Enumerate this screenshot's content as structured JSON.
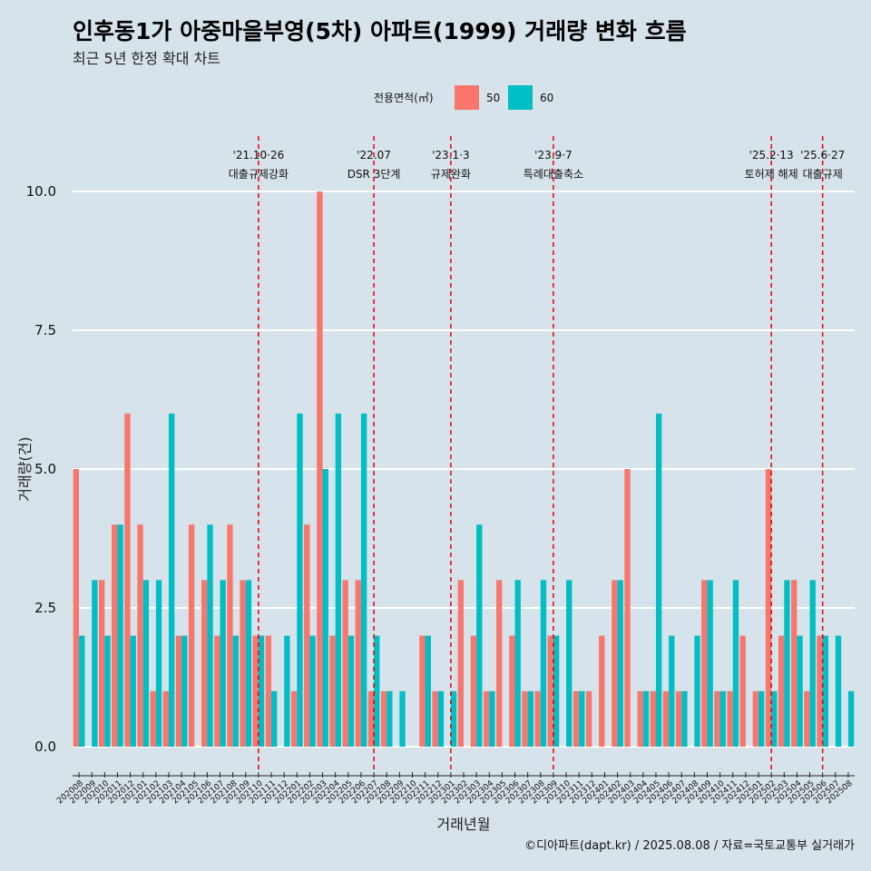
{
  "colors": {
    "background": "#d6e3ea",
    "s50": "#f8766d",
    "s60": "#00bfc4",
    "vline": "#e8000b",
    "grid": "#ffffff"
  },
  "chart_data": {
    "type": "bar",
    "title": "인후동1가 아중마을부영(5차) 아파트(1999) 거래량 변화 흐름",
    "subtitle": "최근 5년 한정 확대 차트",
    "xlabel": "거래년월",
    "ylabel": "거래량(건)",
    "ylim": [
      0,
      10
    ],
    "yticks": [
      "0.0",
      "2.5",
      "5.0",
      "7.5",
      "10.0"
    ],
    "legend": {
      "title": "전용면적(㎡)",
      "position": "top",
      "labels": [
        "50",
        "60"
      ]
    },
    "categories": [
      "202008",
      "202009",
      "202010",
      "202011",
      "202012",
      "202101",
      "202102",
      "202103",
      "202104",
      "202105",
      "202106",
      "202107",
      "202108",
      "202109",
      "202110",
      "202111",
      "202112",
      "202201",
      "202202",
      "202203",
      "202204",
      "202205",
      "202206",
      "202207",
      "202208",
      "202209",
      "202210",
      "202211",
      "202212",
      "202301",
      "202302",
      "202303",
      "202304",
      "202305",
      "202306",
      "202307",
      "202308",
      "202309",
      "202310",
      "202311",
      "202312",
      "202401",
      "202402",
      "202403",
      "202404",
      "202405",
      "202406",
      "202407",
      "202408",
      "202409",
      "202410",
      "202411",
      "202412",
      "202501",
      "202502",
      "202503",
      "202504",
      "202505",
      "202506",
      "202507",
      "202508"
    ],
    "series": [
      {
        "name": "50",
        "values": [
          5,
          0,
          3,
          4,
          6,
          4,
          1,
          1,
          2,
          4,
          3,
          2,
          4,
          3,
          2,
          2,
          0,
          1,
          4,
          10,
          2,
          3,
          3,
          1,
          1,
          0,
          0,
          2,
          1,
          0,
          3,
          2,
          1,
          3,
          2,
          1,
          1,
          2,
          0,
          1,
          1,
          2,
          3,
          5,
          1,
          1,
          1,
          1,
          0,
          3,
          1,
          1,
          2,
          1,
          5,
          2,
          3,
          1,
          2,
          0,
          0
        ]
      },
      {
        "name": "60",
        "values": [
          2,
          3,
          2,
          4,
          2,
          3,
          3,
          6,
          2,
          0,
          4,
          3,
          2,
          3,
          2,
          1,
          2,
          6,
          2,
          5,
          6,
          2,
          6,
          2,
          1,
          1,
          0,
          2,
          1,
          1,
          0,
          4,
          1,
          0,
          3,
          1,
          3,
          2,
          3,
          1,
          0,
          0,
          3,
          0,
          1,
          6,
          2,
          1,
          2,
          3,
          1,
          3,
          0,
          1,
          1,
          3,
          2,
          3,
          2,
          2,
          1
        ]
      }
    ],
    "annotations": [
      {
        "category": "202110",
        "date": "'21.10·26",
        "label": "대출규제강화"
      },
      {
        "category": "202207",
        "date": "'22.07",
        "label": "DSR 3단계"
      },
      {
        "category": "202301",
        "date": "'23.1·3",
        "label": "규제완화"
      },
      {
        "category": "202309",
        "date": "'23.9·7",
        "label": "특례대출축소"
      },
      {
        "category": "202502",
        "date": "'25.2·13",
        "label": "토허제 해제"
      },
      {
        "category": "202506",
        "date": "'25.6·27",
        "label": "대출규제"
      }
    ],
    "caption": "©디아파트(dapt.kr) / 2025.08.08 / 자료=국토교통부 실거래가"
  }
}
